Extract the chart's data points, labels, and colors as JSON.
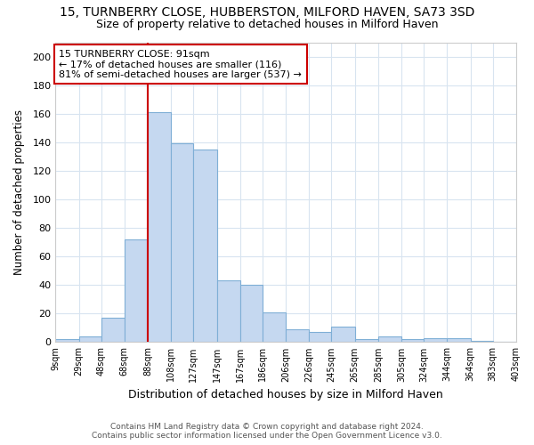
{
  "title": "15, TURNBERRY CLOSE, HUBBERSTON, MILFORD HAVEN, SA73 3SD",
  "subtitle": "Size of property relative to detached houses in Milford Haven",
  "xlabel": "Distribution of detached houses by size in Milford Haven",
  "ylabel": "Number of detached properties",
  "footer_line1": "Contains HM Land Registry data © Crown copyright and database right 2024.",
  "footer_line2": "Contains public sector information licensed under the Open Government Licence v3.0.",
  "bar_edges": [
    9,
    29,
    48,
    68,
    88,
    108,
    127,
    147,
    167,
    186,
    206,
    226,
    245,
    265,
    285,
    305,
    324,
    344,
    364,
    383,
    403
  ],
  "bar_heights": [
    2,
    4,
    17,
    72,
    161,
    139,
    135,
    43,
    40,
    21,
    9,
    7,
    11,
    2,
    4,
    2,
    3,
    3,
    1,
    0
  ],
  "bar_color": "#c5d8f0",
  "bar_edge_color": "#7fafd6",
  "property_line_x": 88,
  "property_line_color": "#cc0000",
  "annotation_text1": "15 TURNBERRY CLOSE: 91sqm",
  "annotation_text2": "← 17% of detached houses are smaller (116)",
  "annotation_text3": "81% of semi-detached houses are larger (537) →",
  "annotation_box_color": "#ffffff",
  "annotation_box_edge": "#cc0000",
  "ylim": [
    0,
    210
  ],
  "yticks": [
    0,
    20,
    40,
    60,
    80,
    100,
    120,
    140,
    160,
    180,
    200
  ],
  "tick_labels": [
    "9sqm",
    "29sqm",
    "48sqm",
    "68sqm",
    "88sqm",
    "108sqm",
    "127sqm",
    "147sqm",
    "167sqm",
    "186sqm",
    "206sqm",
    "226sqm",
    "245sqm",
    "265sqm",
    "285sqm",
    "305sqm",
    "324sqm",
    "344sqm",
    "364sqm",
    "383sqm",
    "403sqm"
  ],
  "background_color": "#ffffff",
  "grid_color": "#d8e4f0",
  "title_fontsize": 10,
  "subtitle_fontsize": 9
}
